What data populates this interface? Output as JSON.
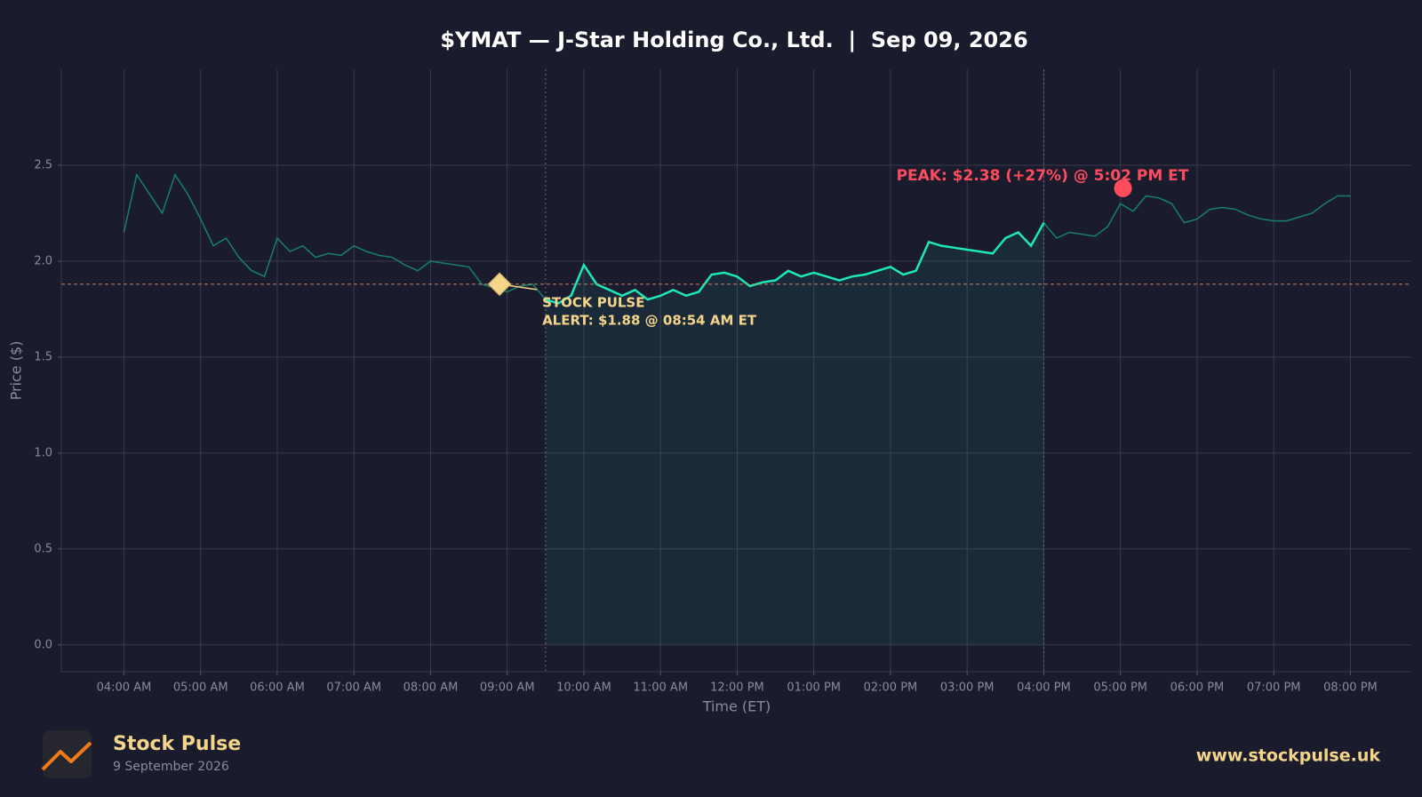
{
  "chart_data": {
    "type": "line",
    "title": "$YMAT — J-Star Holding Co., Ltd.  |  Sep 09, 2026",
    "x_label": "Time (ET)",
    "y_label": "Price ($)",
    "x": [
      "04:00 AM",
      "04:10 AM",
      "04:20 AM",
      "04:30 AM",
      "04:40 AM",
      "04:50 AM",
      "05:00 AM",
      "05:10 AM",
      "05:20 AM",
      "05:30 AM",
      "05:40 AM",
      "05:50 AM",
      "06:00 AM",
      "06:10 AM",
      "06:20 AM",
      "06:30 AM",
      "06:40 AM",
      "06:50 AM",
      "07:00 AM",
      "07:10 AM",
      "07:20 AM",
      "07:30 AM",
      "07:40 AM",
      "07:50 AM",
      "08:00 AM",
      "08:10 AM",
      "08:20 AM",
      "08:30 AM",
      "08:40 AM",
      "08:50 AM",
      "09:00 AM",
      "09:10 AM",
      "09:20 AM",
      "09:30 AM",
      "09:40 AM",
      "09:50 AM",
      "10:00 AM",
      "10:10 AM",
      "10:20 AM",
      "10:30 AM",
      "10:40 AM",
      "10:50 AM",
      "11:00 AM",
      "11:10 AM",
      "11:20 AM",
      "11:30 AM",
      "11:40 AM",
      "11:50 AM",
      "12:00 PM",
      "12:10 PM",
      "12:20 PM",
      "12:30 PM",
      "12:40 PM",
      "12:50 PM",
      "01:00 PM",
      "01:10 PM",
      "01:20 PM",
      "01:30 PM",
      "01:40 PM",
      "01:50 PM",
      "02:00 PM",
      "02:10 PM",
      "02:20 PM",
      "02:30 PM",
      "02:40 PM",
      "02:50 PM",
      "03:00 PM",
      "03:10 PM",
      "03:20 PM",
      "03:30 PM",
      "03:40 PM",
      "03:50 PM",
      "04:00 PM",
      "04:10 PM",
      "04:20 PM",
      "04:30 PM",
      "04:40 PM",
      "04:50 PM",
      "05:00 PM",
      "05:10 PM",
      "05:20 PM",
      "05:30 PM",
      "05:40 PM",
      "05:50 PM",
      "06:00 PM",
      "06:10 PM",
      "06:20 PM",
      "06:30 PM",
      "06:40 PM",
      "06:50 PM",
      "07:00 PM",
      "07:10 PM",
      "07:20 PM",
      "07:30 PM",
      "07:40 PM",
      "07:50 PM",
      "08:00 PM"
    ],
    "series": [
      {
        "name": "$YMAT",
        "color": "#1de9b6",
        "dim_color": "#17806c",
        "values": [
          2.15,
          2.45,
          2.35,
          2.25,
          2.45,
          2.35,
          2.22,
          2.08,
          2.12,
          2.02,
          1.95,
          1.92,
          2.12,
          2.05,
          2.08,
          2.02,
          2.04,
          2.03,
          2.08,
          2.05,
          2.03,
          2.02,
          1.98,
          1.95,
          2.0,
          1.99,
          1.98,
          1.97,
          1.88,
          1.86,
          1.84,
          1.87,
          1.88,
          1.8,
          1.78,
          1.82,
          1.98,
          1.88,
          1.85,
          1.82,
          1.85,
          1.8,
          1.82,
          1.85,
          1.82,
          1.84,
          1.93,
          1.94,
          1.92,
          1.87,
          1.89,
          1.9,
          1.95,
          1.92,
          1.94,
          1.92,
          1.9,
          1.92,
          1.93,
          1.95,
          1.97,
          1.93,
          1.95,
          2.1,
          2.08,
          2.07,
          2.06,
          2.05,
          2.04,
          2.12,
          2.15,
          2.08,
          2.2,
          2.12,
          2.15,
          2.14,
          2.13,
          2.18,
          2.3,
          2.26,
          2.34,
          2.33,
          2.3,
          2.2,
          2.22,
          2.27,
          2.28,
          2.27,
          2.24,
          2.22,
          2.21,
          2.21,
          2.23,
          2.25,
          2.3,
          2.34,
          2.34
        ]
      }
    ],
    "session": [
      "09:30 AM",
      "04:00 PM"
    ],
    "xlim": [
      "03:11 AM",
      "08:47 PM"
    ],
    "xticks": [
      "04:00 AM",
      "05:00 AM",
      "06:00 AM",
      "07:00 AM",
      "08:00 AM",
      "09:00 AM",
      "10:00 AM",
      "11:00 AM",
      "12:00 PM",
      "01:00 PM",
      "02:00 PM",
      "03:00 PM",
      "04:00 PM",
      "05:00 PM",
      "06:00 PM",
      "07:00 PM",
      "08:00 PM"
    ],
    "ylim": [
      -0.14,
      3.0
    ],
    "yticks": [
      {
        "value": 0,
        "label": "0.0"
      },
      0.5,
      {
        "value": 1,
        "label": "1.0"
      },
      1.5,
      {
        "value": 2,
        "label": "2.0"
      },
      2.5
    ],
    "grid": true,
    "alert": {
      "x": "08:54 AM",
      "value": 1.88,
      "color": "#f5d58a",
      "label": [
        "STOCK PULSE",
        "ALERT: $1.88 @ 08:54 AM ET"
      ]
    },
    "peak": {
      "x": "05:02 PM",
      "value": 2.38,
      "color": "#ff4d5e",
      "label": "PEAK: $2.38 (+27%) @ 5:02 PM ET"
    }
  },
  "footer": {
    "brand": "Stock Pulse",
    "date": "9 September 2026",
    "url": "www.stockpulse.uk"
  }
}
